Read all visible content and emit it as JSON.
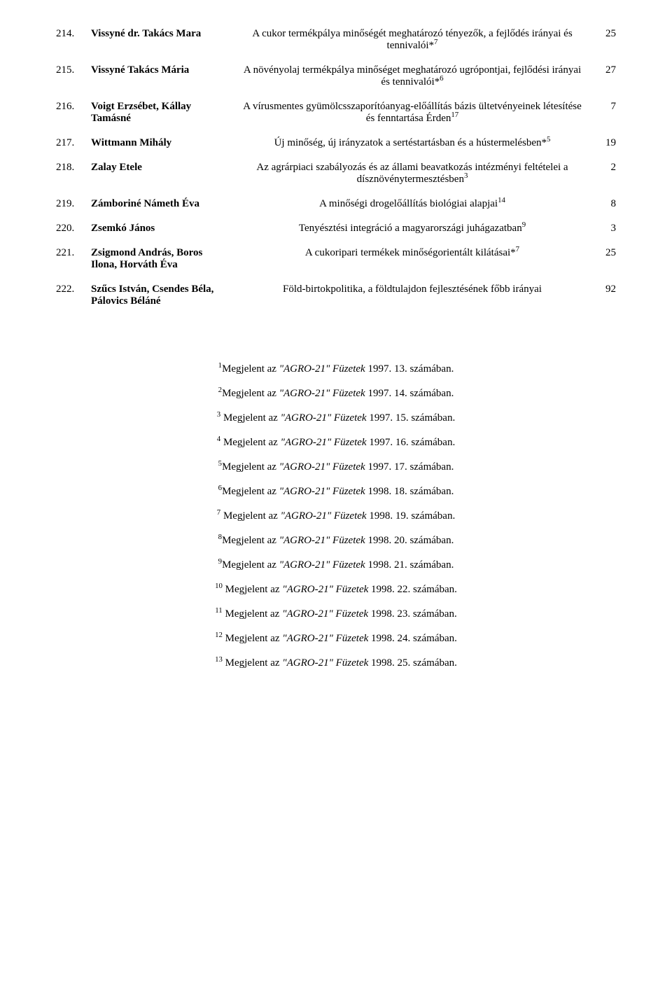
{
  "rows": [
    {
      "num": "214.",
      "author": "Vissyné dr. Takács Mara",
      "title": "A cukor termékpálya minőségét meghatározó tényezők, a fejlődés irányai és tennivalói*",
      "sup": "7",
      "pg": "25"
    },
    {
      "num": "215.",
      "author": "Vissyné Takács Mária",
      "title": "A növényolaj termékpálya minőséget meghatározó ugrópontjai, fejlődési irányai és tennivalói*",
      "sup": "6",
      "pg": "27"
    },
    {
      "num": "216.",
      "author": "Voigt Erzsébet, Kállay Tamásné",
      "title": "A vírusmentes gyümölcsszaporítóanyag-előállítás bázis ültetvényeinek létesítése és fenntartása Érden",
      "sup": "17",
      "pg": "7"
    },
    {
      "num": "217.",
      "author": "Wittmann Mihály",
      "title": "Új minőség, új irányzatok a sertéstartásban és a hústermelésben*",
      "sup": "5",
      "pg": "19"
    },
    {
      "num": "218.",
      "author": "Zalay Etele",
      "title": "Az agrárpiaci szabályozás és az állami beavatkozás intézményi feltételei a dísznövénytermesztésben",
      "sup": "3",
      "pg": "2"
    },
    {
      "num": "219.",
      "author": "Zámboriné Námeth Éva",
      "title": "A minőségi drogelőállítás biológiai alapjai",
      "sup": "14",
      "pg": "8"
    },
    {
      "num": "220.",
      "author": "Zsemkó János",
      "title": "Tenyésztési integráció a magyarországi juhágazatban",
      "sup": "9",
      "pg": "3"
    },
    {
      "num": "221.",
      "author": "Zsigmond András, Boros Ilona, Horváth Éva",
      "title": "A cukoripari termékek minőségorientált kilátásai*",
      "sup": "7",
      "pg": "25"
    },
    {
      "num": "222.",
      "author": "Szűcs István, Csendes Béla, Pálovics Béláné",
      "title": "Föld-birtokpolitika, a földtulajdon fejlesztésének főbb irányai",
      "sup": "",
      "pg": "92"
    }
  ],
  "notes": [
    {
      "n": "1",
      "pre": "Megjelent az ",
      "it": "\"AGRO-21\" Füzetek",
      "post": " 1997. 13. számában."
    },
    {
      "n": "2",
      "pre": "Megjelent az ",
      "it": "\"AGRO-21\" Füzetek",
      "post": " 1997. 14. számában."
    },
    {
      "n": "3",
      "pre": " Megjelent az ",
      "it": "\"AGRO-21\" Füzetek",
      "post": " 1997. 15. számában."
    },
    {
      "n": "4",
      "pre": " Megjelent az ",
      "it": "\"AGRO-21\" Füzetek",
      "post": " 1997. 16. számában."
    },
    {
      "n": "5",
      "pre": "Megjelent az ",
      "it": "\"AGRO-21\" Füzetek",
      "post": " 1997. 17. számában."
    },
    {
      "n": "6",
      "pre": "Megjelent az ",
      "it": "\"AGRO-21\" Füzetek",
      "post": " 1998. 18. számában."
    },
    {
      "n": "7",
      "pre": " Megjelent az ",
      "it": "\"AGRO-21\" Füzetek",
      "post": " 1998. 19. számában."
    },
    {
      "n": "8",
      "pre": "Megjelent az ",
      "it": "\"AGRO-21\" Füzetek",
      "post": " 1998. 20. számában."
    },
    {
      "n": "9",
      "pre": "Megjelent az ",
      "it": "\"AGRO-21\" Füzetek",
      "post": " 1998. 21. számában."
    },
    {
      "n": "10",
      "pre": " Megjelent az ",
      "it": "\"AGRO-21\" Füzetek",
      "post": " 1998. 22. számában."
    },
    {
      "n": "11",
      "pre": " Megjelent az ",
      "it": "\"AGRO-21\" Füzetek",
      "post": " 1998. 23. számában."
    },
    {
      "n": "12",
      "pre": " Megjelent az ",
      "it": "\"AGRO-21\" Füzetek",
      "post": " 1998. 24. számában."
    },
    {
      "n": "13",
      "pre": " Megjelent az ",
      "it": "\"AGRO-21\" Füzetek",
      "post": " 1998. 25. számában."
    }
  ]
}
